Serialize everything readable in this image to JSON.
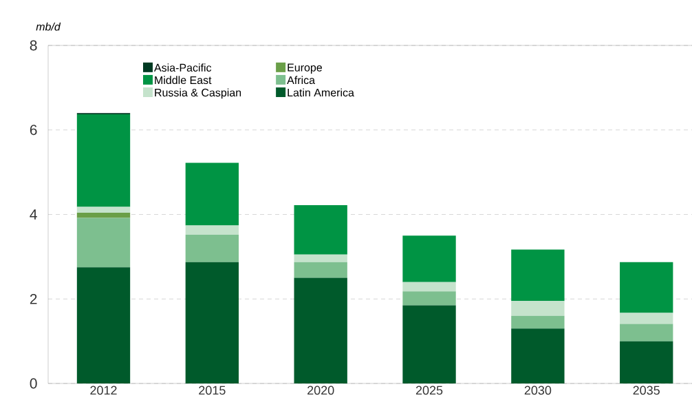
{
  "chart_data": {
    "type": "bar",
    "stacked": true,
    "ylabel": "mb/d",
    "categories": [
      "2012",
      "2015",
      "2020",
      "2025",
      "2030",
      "2035"
    ],
    "series": [
      {
        "name": "Latin America",
        "color": "#005a2b",
        "values": [
          2.75,
          2.87,
          2.5,
          1.85,
          1.3,
          1.0
        ]
      },
      {
        "name": "Africa",
        "color": "#7dbf8f",
        "values": [
          1.17,
          0.65,
          0.37,
          0.33,
          0.3,
          0.41
        ]
      },
      {
        "name": "Europe",
        "color": "#6a9f48",
        "values": [
          0.12,
          0,
          0,
          0,
          0,
          0
        ]
      },
      {
        "name": "Russia & Caspian",
        "color": "#c5e3cc",
        "values": [
          0.14,
          0.22,
          0.18,
          0.22,
          0.35,
          0.26
        ]
      },
      {
        "name": "Middle East",
        "color": "#009444",
        "values": [
          2.19,
          1.48,
          1.17,
          1.1,
          1.22,
          1.2
        ]
      },
      {
        "name": "Asia-Pacific",
        "color": "#003a22",
        "values": [
          0.03,
          0,
          0,
          0,
          0,
          0
        ]
      }
    ],
    "ylim": [
      0,
      8
    ],
    "yticks": [
      0,
      2,
      4,
      6,
      8
    ],
    "grid": "y",
    "legend": "top left"
  }
}
